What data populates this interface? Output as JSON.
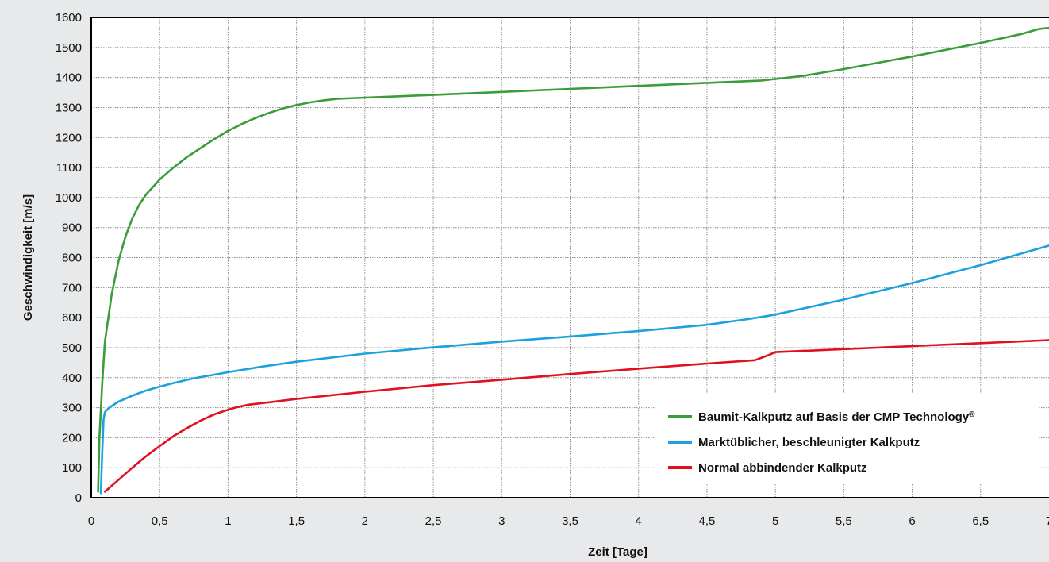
{
  "chart_data": {
    "type": "line",
    "xlabel": "Zeit [Tage]",
    "ylabel": "Geschwindigkeit [m/s]",
    "xlim": [
      0,
      7
    ],
    "ylim": [
      0,
      1600
    ],
    "x_ticks": [
      {
        "value": 0,
        "label": "0"
      },
      {
        "value": 0.5,
        "label": "0,5"
      },
      {
        "value": 1,
        "label": "1"
      },
      {
        "value": 1.5,
        "label": "1,5"
      },
      {
        "value": 2,
        "label": "2"
      },
      {
        "value": 2.5,
        "label": "2,5"
      },
      {
        "value": 3,
        "label": "3"
      },
      {
        "value": 3.5,
        "label": "3,5"
      },
      {
        "value": 4,
        "label": "4"
      },
      {
        "value": 4.5,
        "label": "4,5"
      },
      {
        "value": 5,
        "label": "5"
      },
      {
        "value": 5.5,
        "label": "5,5"
      },
      {
        "value": 6,
        "label": "6"
      },
      {
        "value": 6.5,
        "label": "6,5"
      },
      {
        "value": 7,
        "label": "7"
      }
    ],
    "y_ticks": [
      {
        "value": 0,
        "label": "0"
      },
      {
        "value": 100,
        "label": "100"
      },
      {
        "value": 200,
        "label": "200"
      },
      {
        "value": 300,
        "label": "300"
      },
      {
        "value": 400,
        "label": "400"
      },
      {
        "value": 500,
        "label": "500"
      },
      {
        "value": 600,
        "label": "600"
      },
      {
        "value": 700,
        "label": "700"
      },
      {
        "value": 800,
        "label": "800"
      },
      {
        "value": 900,
        "label": "900"
      },
      {
        "value": 1000,
        "label": "1000"
      },
      {
        "value": 1100,
        "label": "1100"
      },
      {
        "value": 1200,
        "label": "1200"
      },
      {
        "value": 1300,
        "label": "1300"
      },
      {
        "value": 1400,
        "label": "1400"
      },
      {
        "value": 1500,
        "label": "1500"
      },
      {
        "value": 1600,
        "label": "1600"
      }
    ],
    "grid": true,
    "legend_position": "bottom-right",
    "series": [
      {
        "name": "Baumit-Kalkputz auf Basis der CMP Technology",
        "name_superscript": "®",
        "color": "#3a9d3a",
        "points": [
          [
            0.05,
            20
          ],
          [
            0.06,
            200
          ],
          [
            0.08,
            380
          ],
          [
            0.1,
            520
          ],
          [
            0.15,
            680
          ],
          [
            0.2,
            790
          ],
          [
            0.25,
            870
          ],
          [
            0.3,
            930
          ],
          [
            0.35,
            975
          ],
          [
            0.4,
            1010
          ],
          [
            0.5,
            1060
          ],
          [
            0.6,
            1100
          ],
          [
            0.7,
            1135
          ],
          [
            0.8,
            1165
          ],
          [
            0.9,
            1195
          ],
          [
            1,
            1222
          ],
          [
            1.1,
            1245
          ],
          [
            1.2,
            1265
          ],
          [
            1.3,
            1282
          ],
          [
            1.4,
            1297
          ],
          [
            1.5,
            1308
          ],
          [
            1.6,
            1317
          ],
          [
            1.7,
            1324
          ],
          [
            1.8,
            1329
          ],
          [
            2,
            1333
          ],
          [
            2.5,
            1342
          ],
          [
            3,
            1352
          ],
          [
            3.5,
            1362
          ],
          [
            4,
            1372
          ],
          [
            4.5,
            1382
          ],
          [
            4.9,
            1390
          ],
          [
            5,
            1395
          ],
          [
            5.2,
            1405
          ],
          [
            5.5,
            1428
          ],
          [
            6,
            1470
          ],
          [
            6.5,
            1515
          ],
          [
            6.8,
            1545
          ],
          [
            6.93,
            1562
          ],
          [
            7,
            1565
          ]
        ]
      },
      {
        "name": "Marktüblicher, beschleunigter Kalkputz",
        "name_superscript": "",
        "color": "#1ba1dd",
        "points": [
          [
            0.07,
            15
          ],
          [
            0.08,
            150
          ],
          [
            0.09,
            260
          ],
          [
            0.1,
            285
          ],
          [
            0.13,
            300
          ],
          [
            0.2,
            320
          ],
          [
            0.3,
            340
          ],
          [
            0.4,
            357
          ],
          [
            0.5,
            370
          ],
          [
            0.6,
            382
          ],
          [
            0.75,
            398
          ],
          [
            0.9,
            410
          ],
          [
            1,
            418
          ],
          [
            1.25,
            437
          ],
          [
            1.5,
            453
          ],
          [
            2,
            480
          ],
          [
            2.5,
            501
          ],
          [
            3,
            520
          ],
          [
            3.5,
            537
          ],
          [
            4,
            555
          ],
          [
            4.5,
            576
          ],
          [
            4.8,
            595
          ],
          [
            5,
            610
          ],
          [
            5.5,
            660
          ],
          [
            6,
            715
          ],
          [
            6.5,
            775
          ],
          [
            7,
            840
          ]
        ]
      },
      {
        "name": "Normal abbindender Kalkputz",
        "name_superscript": "",
        "color": "#e0101f",
        "points": [
          [
            0.1,
            20
          ],
          [
            0.2,
            60
          ],
          [
            0.3,
            100
          ],
          [
            0.4,
            138
          ],
          [
            0.5,
            172
          ],
          [
            0.6,
            205
          ],
          [
            0.7,
            232
          ],
          [
            0.8,
            257
          ],
          [
            0.9,
            278
          ],
          [
            1,
            293
          ],
          [
            1.05,
            300
          ],
          [
            1.15,
            310
          ],
          [
            1.3,
            318
          ],
          [
            1.5,
            329
          ],
          [
            2,
            353
          ],
          [
            2.5,
            375
          ],
          [
            3,
            393
          ],
          [
            3.5,
            412
          ],
          [
            4,
            430
          ],
          [
            4.5,
            447
          ],
          [
            4.85,
            458
          ],
          [
            4.95,
            475
          ],
          [
            5,
            485
          ],
          [
            5.5,
            495
          ],
          [
            6,
            505
          ],
          [
            6.5,
            515
          ],
          [
            7,
            525
          ]
        ]
      }
    ]
  }
}
